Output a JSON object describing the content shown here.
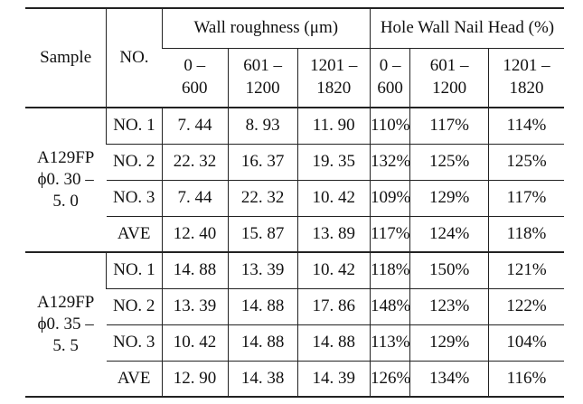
{
  "header": {
    "sample": "Sample",
    "no": "NO.",
    "wall_roughness": "Wall roughness (μm)",
    "nail_head": "Hole Wall Nail Head (%)",
    "ranges": [
      {
        "a": "0 –",
        "b": "600"
      },
      {
        "a": "601 –",
        "b": "1200"
      },
      {
        "a": "1201 –",
        "b": "1820"
      },
      {
        "a": "0 –",
        "b": "600"
      },
      {
        "a": "601 –",
        "b": "1200"
      },
      {
        "a": "1201 –",
        "b": "1820"
      }
    ]
  },
  "groups": [
    {
      "sample_lines": [
        "A129FP",
        "ϕ0. 30 –",
        "5. 0"
      ],
      "rows": [
        {
          "no": "NO. 1",
          "r1": "7. 44",
          "r2": "8. 93",
          "r3": "11. 90",
          "n1": "110%",
          "n2": "117%",
          "n3": "114%"
        },
        {
          "no": "NO. 2",
          "r1": "22. 32",
          "r2": "16. 37",
          "r3": "19. 35",
          "n1": "132%",
          "n2": "125%",
          "n3": "125%"
        },
        {
          "no": "NO. 3",
          "r1": "7. 44",
          "r2": "22. 32",
          "r3": "10. 42",
          "n1": "109%",
          "n2": "129%",
          "n3": "117%"
        },
        {
          "no": "AVE",
          "r1": "12. 40",
          "r2": "15. 87",
          "r3": "13. 89",
          "n1": "117%",
          "n2": "124%",
          "n3": "118%"
        }
      ]
    },
    {
      "sample_lines": [
        "A129FP",
        "ϕ0. 35 –",
        "5. 5"
      ],
      "rows": [
        {
          "no": "NO. 1",
          "r1": "14. 88",
          "r2": "13. 39",
          "r3": "10. 42",
          "n1": "118%",
          "n2": "150%",
          "n3": "121%"
        },
        {
          "no": "NO. 2",
          "r1": "13. 39",
          "r2": "14. 88",
          "r3": "17. 86",
          "n1": "148%",
          "n2": "123%",
          "n3": "122%"
        },
        {
          "no": "NO. 3",
          "r1": "10. 42",
          "r2": "14. 88",
          "r3": "14. 88",
          "n1": "113%",
          "n2": "129%",
          "n3": "104%"
        },
        {
          "no": "AVE",
          "r1": "12. 90",
          "r2": "14. 38",
          "r3": "14. 39",
          "n1": "126%",
          "n2": "134%",
          "n3": "116%"
        }
      ]
    }
  ]
}
